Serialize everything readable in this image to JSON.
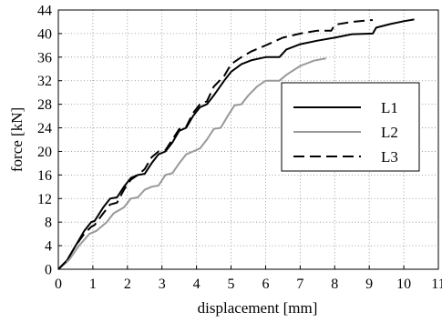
{
  "chart_data": {
    "type": "line",
    "title": "",
    "xlabel": "displacement [mm]",
    "ylabel": "force [kN]",
    "xlim": [
      0,
      11
    ],
    "ylim": [
      0,
      44
    ],
    "x_ticks": [
      0,
      1,
      2,
      3,
      4,
      5,
      6,
      7,
      8,
      9,
      10,
      11
    ],
    "y_ticks": [
      0,
      4,
      8,
      12,
      16,
      20,
      24,
      28,
      32,
      36,
      40,
      44
    ],
    "grid": true,
    "legend_position": "center-right",
    "series": [
      {
        "name": "L1",
        "color": "#000000",
        "dash": "solid",
        "points": [
          [
            0,
            0
          ],
          [
            0.25,
            1.5
          ],
          [
            0.5,
            4
          ],
          [
            0.75,
            6.5
          ],
          [
            0.95,
            8
          ],
          [
            1.05,
            8.2
          ],
          [
            1.3,
            10.5
          ],
          [
            1.5,
            12
          ],
          [
            1.7,
            12.2
          ],
          [
            1.9,
            14
          ],
          [
            2.1,
            15.5
          ],
          [
            2.3,
            16
          ],
          [
            2.5,
            16.2
          ],
          [
            2.7,
            18
          ],
          [
            2.9,
            19.5
          ],
          [
            3.1,
            20
          ],
          [
            3.3,
            21.5
          ],
          [
            3.5,
            23.5
          ],
          [
            3.7,
            24
          ],
          [
            3.9,
            26
          ],
          [
            4.1,
            27.5
          ],
          [
            4.3,
            28
          ],
          [
            4.5,
            29.5
          ],
          [
            4.8,
            32
          ],
          [
            5.0,
            33.5
          ],
          [
            5.3,
            34.8
          ],
          [
            5.6,
            35.5
          ],
          [
            6.0,
            36
          ],
          [
            6.4,
            36
          ],
          [
            6.6,
            37.3
          ],
          [
            7.0,
            38.2
          ],
          [
            7.5,
            38.8
          ],
          [
            8.0,
            39.3
          ],
          [
            8.5,
            39.9
          ],
          [
            9.1,
            40
          ],
          [
            9.2,
            41
          ],
          [
            9.6,
            41.6
          ],
          [
            10.0,
            42.1
          ],
          [
            10.3,
            42.4
          ]
        ]
      },
      {
        "name": "L2",
        "color": "#999999",
        "dash": "solid",
        "points": [
          [
            0,
            0
          ],
          [
            0.3,
            1.5
          ],
          [
            0.6,
            4
          ],
          [
            0.9,
            6
          ],
          [
            1.1,
            6.5
          ],
          [
            1.4,
            8
          ],
          [
            1.6,
            9.5
          ],
          [
            1.9,
            10.5
          ],
          [
            2.1,
            12
          ],
          [
            2.3,
            12.2
          ],
          [
            2.5,
            13.5
          ],
          [
            2.7,
            14
          ],
          [
            2.9,
            14.2
          ],
          [
            3.1,
            16
          ],
          [
            3.3,
            16.3
          ],
          [
            3.5,
            18
          ],
          [
            3.7,
            19.5
          ],
          [
            3.9,
            20
          ],
          [
            4.1,
            20.5
          ],
          [
            4.3,
            22
          ],
          [
            4.5,
            23.8
          ],
          [
            4.7,
            24
          ],
          [
            4.9,
            26
          ],
          [
            5.1,
            27.8
          ],
          [
            5.3,
            28
          ],
          [
            5.5,
            29.5
          ],
          [
            5.75,
            31
          ],
          [
            6.0,
            32
          ],
          [
            6.4,
            32
          ],
          [
            6.6,
            33
          ],
          [
            7.0,
            34.5
          ],
          [
            7.4,
            35.4
          ],
          [
            7.75,
            35.8
          ]
        ]
      },
      {
        "name": "L3",
        "color": "#000000",
        "dash": "dashed",
        "points": [
          [
            0,
            0
          ],
          [
            0.25,
            1.5
          ],
          [
            0.5,
            4
          ],
          [
            0.75,
            6
          ],
          [
            0.95,
            7.2
          ],
          [
            1.05,
            7.5
          ],
          [
            1.3,
            9.5
          ],
          [
            1.5,
            11
          ],
          [
            1.7,
            11.3
          ],
          [
            1.9,
            13.5
          ],
          [
            2.1,
            15.2
          ],
          [
            2.3,
            16
          ],
          [
            2.5,
            17
          ],
          [
            2.7,
            19
          ],
          [
            2.9,
            20
          ],
          [
            3.1,
            20.2
          ],
          [
            3.3,
            22
          ],
          [
            3.5,
            23.8
          ],
          [
            3.7,
            24.2
          ],
          [
            3.9,
            26.5
          ],
          [
            4.1,
            28
          ],
          [
            4.3,
            28.5
          ],
          [
            4.5,
            31
          ],
          [
            4.8,
            32.8
          ],
          [
            5.0,
            34.8
          ],
          [
            5.3,
            36
          ],
          [
            5.6,
            37
          ],
          [
            6.0,
            38
          ],
          [
            6.5,
            39.3
          ],
          [
            7.0,
            40
          ],
          [
            7.5,
            40.5
          ],
          [
            7.9,
            40.5
          ],
          [
            8.0,
            41.5
          ],
          [
            8.5,
            42
          ],
          [
            9.1,
            42.3
          ]
        ]
      }
    ]
  }
}
